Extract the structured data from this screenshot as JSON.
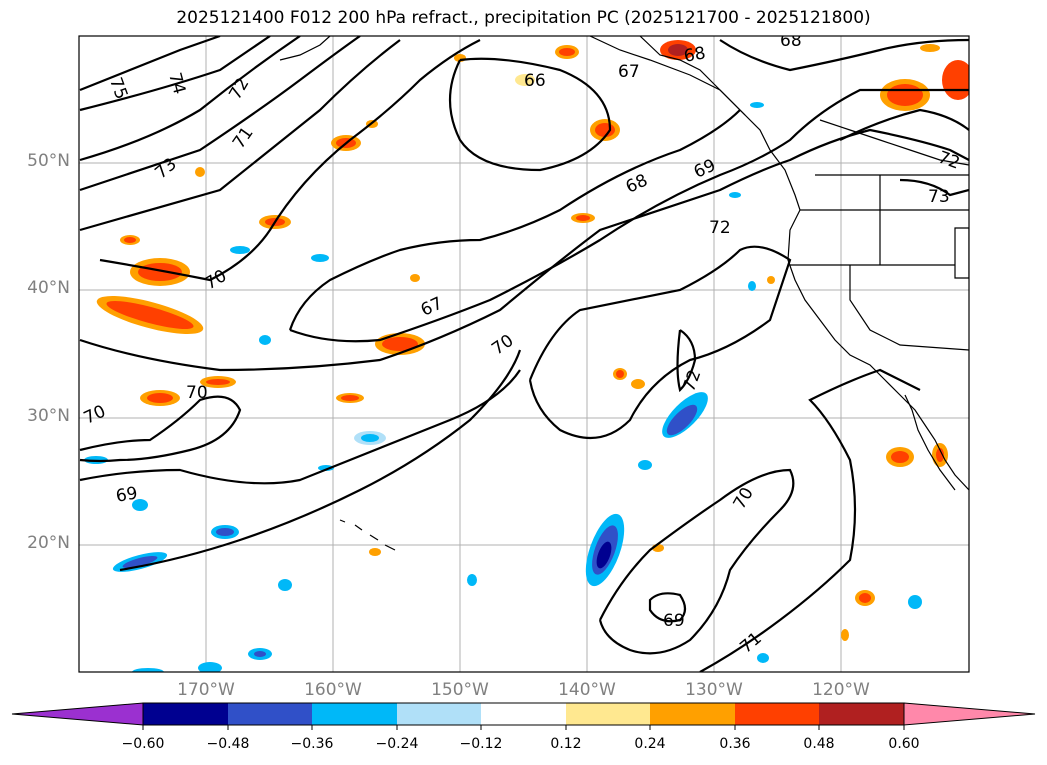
{
  "title": "2025121400 F012 200 hPa refract., precipitation PC (2025121700 - 2025121800)",
  "lat_labels": [
    "50°N",
    "40°N",
    "30°N",
    "20°N"
  ],
  "lon_labels": [
    "170°W",
    "160°W",
    "150°W",
    "140°W",
    "130°W",
    "120°W"
  ],
  "colorbar": {
    "ticks": [
      "−0.60",
      "−0.48",
      "−0.36",
      "−0.24",
      "−0.12",
      "0.12",
      "0.24",
      "0.36",
      "0.48",
      "0.60"
    ],
    "colors": [
      "#9b30d0",
      "#000090",
      "#3050c8",
      "#00b8f8",
      "#b0e0f8",
      "#ffffff",
      "#ffe890",
      "#ffa000",
      "#ff4000",
      "#b02020",
      "#ff88aa"
    ]
  },
  "contour_labels": [
    "75",
    "74",
    "72",
    "71",
    "73",
    "70",
    "67",
    "70",
    "70",
    "69",
    "70",
    "66",
    "67",
    "68",
    "68",
    "68",
    "69",
    "72",
    "72",
    "73",
    "72",
    "70",
    "69",
    "71"
  ],
  "precip_patches": {
    "positive_color_low": "#ffe890",
    "positive_color_mid": "#ffa000",
    "positive_color_high": "#ff4000",
    "positive_color_max": "#b02020",
    "negative_color_low": "#b0e0f8",
    "negative_color_mid": "#00b8f8",
    "negative_color_high": "#3050c8",
    "negative_color_max": "#000090"
  }
}
